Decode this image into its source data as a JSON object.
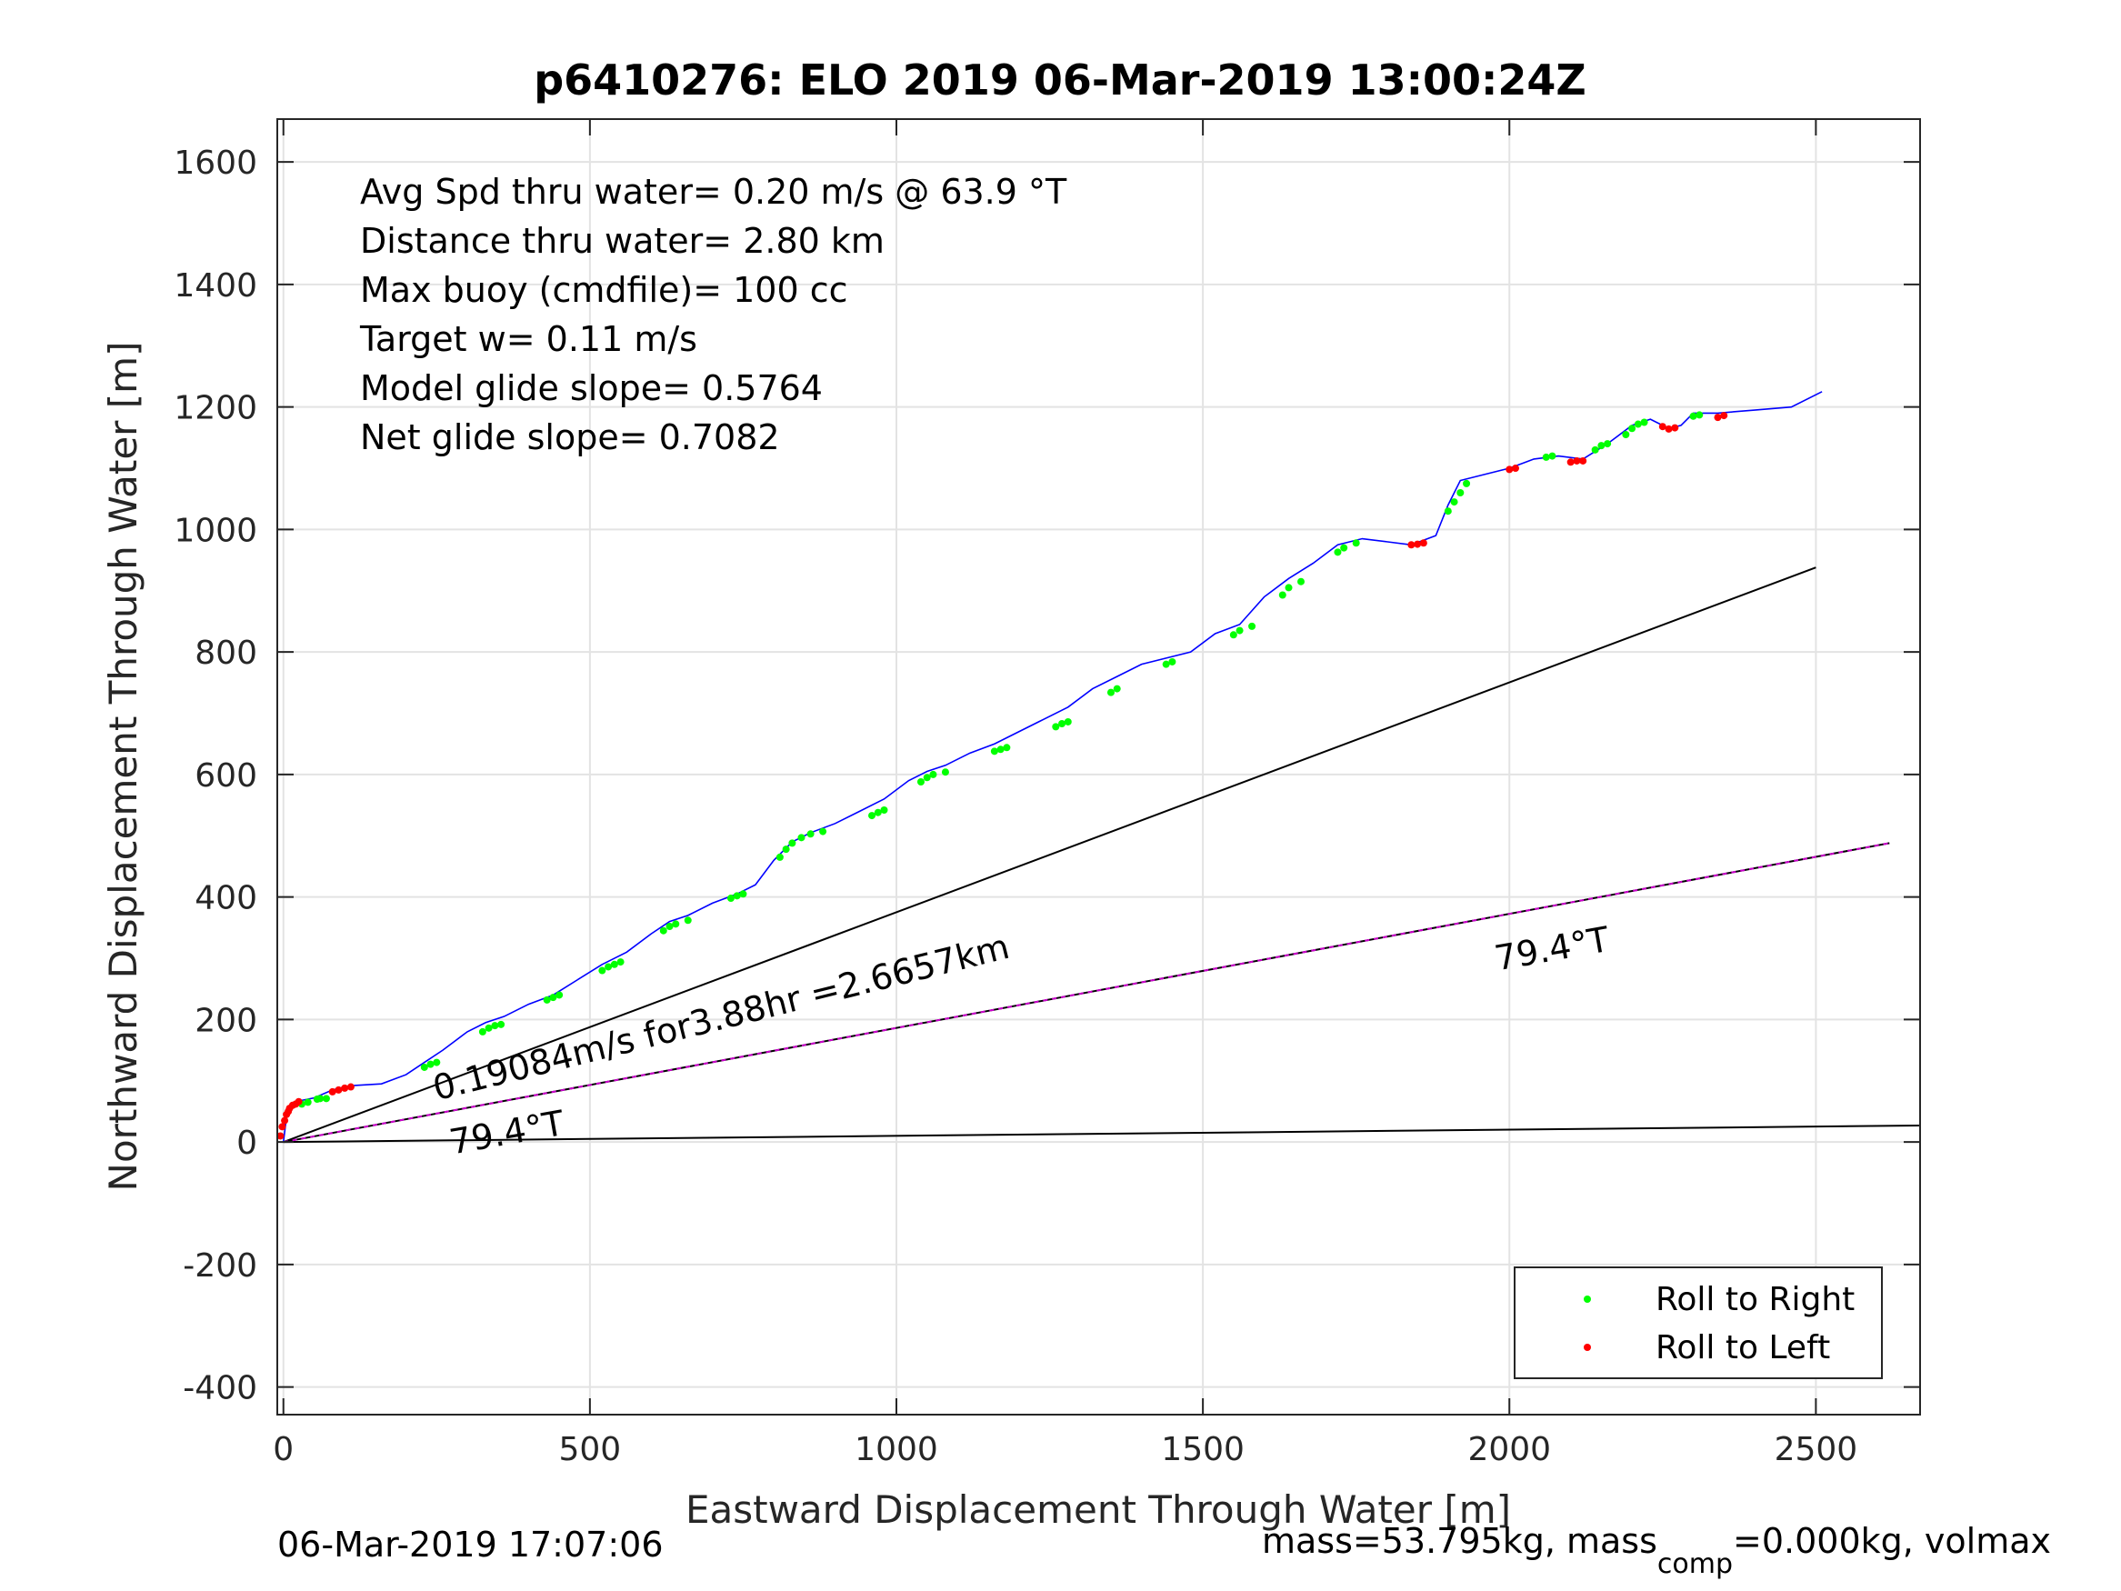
{
  "chart_data": {
    "type": "line",
    "title": "p6410276: ELO 2019 06-Mar-2019 13:00:24Z",
    "xlabel": "Eastward Displacement Through Water [m]",
    "ylabel": "Northward Displacement Through Water [m]",
    "xlim": [
      -10,
      2670
    ],
    "ylim": [
      -445,
      1670
    ],
    "xticks": [
      0,
      500,
      1000,
      1500,
      2000,
      2500
    ],
    "xtick_labels": [
      "0",
      "500",
      "1000",
      "1500",
      "2000",
      "2500"
    ],
    "yticks": [
      -400,
      -200,
      0,
      200,
      400,
      600,
      800,
      1000,
      1200,
      1400,
      1600
    ],
    "ytick_labels": [
      "-400",
      "-200",
      "0",
      "200",
      "400",
      "600",
      "800",
      "1000",
      "1200",
      "1400",
      "1600"
    ],
    "grid": true,
    "legend_position": "bottom-right",
    "legend": [
      {
        "label": "Roll to Right",
        "color": "#00ff00"
      },
      {
        "label": "Roll to Left",
        "color": "#ff0000"
      }
    ],
    "info_lines": [
      "Avg Spd thru water=  0.20 m/s @  63.9 °T",
      "Distance thru water=  2.80 km",
      "Max buoy (cmdfile)= 100 cc",
      "Target w= 0.11 m/s",
      "Model glide slope= 0.5764",
      "Net glide slope= 0.7082"
    ],
    "track": {
      "color": "#0000ff",
      "x": [
        0,
        5,
        15,
        30,
        50,
        80,
        110,
        160,
        200,
        230,
        260,
        300,
        330,
        360,
        400,
        440,
        480,
        520,
        560,
        600,
        630,
        660,
        700,
        740,
        770,
        800,
        830,
        860,
        900,
        940,
        980,
        1020,
        1050,
        1080,
        1120,
        1160,
        1200,
        1240,
        1280,
        1320,
        1360,
        1400,
        1440,
        1480,
        1520,
        1560,
        1600,
        1640,
        1680,
        1720,
        1760,
        1800,
        1840,
        1880,
        1900,
        1920,
        1960,
        2000,
        2040,
        2080,
        2120,
        2160,
        2200,
        2230,
        2260,
        2280,
        2300,
        2340,
        2400,
        2460,
        2510
      ],
      "y": [
        0,
        40,
        55,
        68,
        72,
        85,
        92,
        95,
        110,
        130,
        150,
        180,
        195,
        205,
        225,
        240,
        265,
        290,
        310,
        340,
        360,
        370,
        390,
        405,
        420,
        460,
        490,
        505,
        520,
        540,
        560,
        590,
        605,
        615,
        635,
        650,
        670,
        690,
        710,
        740,
        760,
        780,
        790,
        800,
        830,
        845,
        890,
        920,
        945,
        975,
        985,
        980,
        975,
        990,
        1040,
        1080,
        1090,
        1100,
        1115,
        1120,
        1115,
        1140,
        1170,
        1180,
        1165,
        1170,
        1190,
        1190,
        1195,
        1200,
        1225
      ]
    },
    "roll_right_x": [
      30,
      40,
      55,
      60,
      70,
      230,
      240,
      250,
      325,
      335,
      345,
      355,
      430,
      440,
      450,
      520,
      530,
      540,
      550,
      620,
      630,
      640,
      660,
      730,
      740,
      750,
      810,
      820,
      830,
      845,
      860,
      880,
      960,
      970,
      980,
      1040,
      1050,
      1060,
      1080,
      1160,
      1170,
      1180,
      1260,
      1270,
      1280,
      1350,
      1360,
      1440,
      1450,
      1550,
      1560,
      1580,
      1630,
      1640,
      1660,
      1720,
      1730,
      1750,
      1900,
      1910,
      1920,
      1930,
      2060,
      2070,
      2140,
      2150,
      2160,
      2190,
      2200,
      2210,
      2220,
      2300,
      2310
    ],
    "roll_right_y": [
      62,
      65,
      70,
      71,
      71,
      122,
      127,
      130,
      180,
      186,
      190,
      192,
      232,
      236,
      240,
      280,
      286,
      290,
      294,
      345,
      352,
      356,
      362,
      398,
      402,
      405,
      465,
      478,
      488,
      497,
      503,
      507,
      533,
      538,
      542,
      588,
      595,
      600,
      604,
      638,
      641,
      644,
      678,
      683,
      686,
      734,
      740,
      780,
      784,
      828,
      835,
      842,
      893,
      905,
      915,
      963,
      970,
      978,
      1030,
      1045,
      1060,
      1075,
      1118,
      1120,
      1130,
      1137,
      1140,
      1155,
      1165,
      1172,
      1175,
      1185,
      1187
    ],
    "roll_left_x": [
      -5,
      -2,
      2,
      5,
      8,
      10,
      15,
      20,
      25,
      80,
      90,
      100,
      110,
      1840,
      1850,
      1860,
      2000,
      2010,
      2100,
      2110,
      2120,
      2250,
      2260,
      2270,
      2340,
      2350
    ],
    "roll_left_y": [
      10,
      25,
      35,
      45,
      50,
      55,
      60,
      62,
      66,
      82,
      85,
      88,
      90,
      975,
      976,
      978,
      1098,
      1100,
      1110,
      1112,
      1112,
      1168,
      1164,
      1166,
      1183,
      1186
    ],
    "lines": [
      {
        "name": "",
        "color": "#000000",
        "x": [
          0,
          2500
        ],
        "y": [
          0,
          938
        ]
      },
      {
        "name": "",
        "color": "#000000",
        "x": [
          0,
          2620
        ],
        "y": [
          0,
          488
        ]
      },
      {
        "name": "",
        "color": "#cc00cc",
        "x": [
          0,
          2620
        ],
        "y": [
          0,
          488
        ],
        "dashed": true
      },
      {
        "name": "",
        "color": "#000000",
        "x": [
          0,
          2670
        ],
        "y": [
          0,
          27
        ]
      }
    ],
    "annotations": [
      {
        "text": "0.19084m/s for3.88hr =2.6657km",
        "x": 250,
        "y": 68,
        "angle_deg": -14
      },
      {
        "text": "79.4°T",
        "x": 275,
        "y": -20,
        "angle_deg": -10
      },
      {
        "text": "79.4°T",
        "x": 1980,
        "y": 280,
        "angle_deg": -10
      }
    ],
    "footer_left": "06-Mar-2019 17:07:06",
    "footer_right_prefix": "mass=53.795kg, mass",
    "footer_right_sub": "comp",
    "footer_right_suffix": "=0.000kg, volmax"
  }
}
